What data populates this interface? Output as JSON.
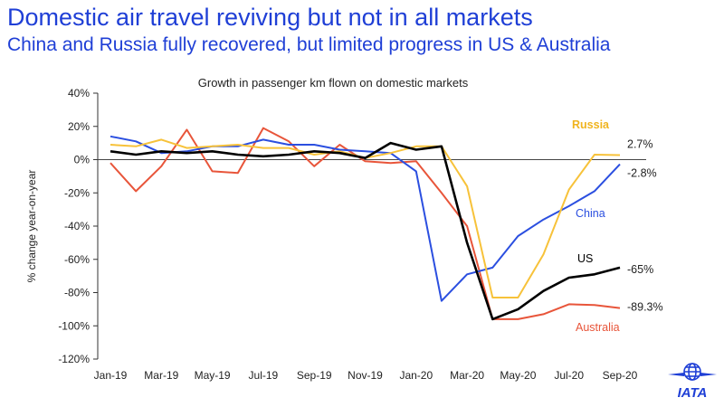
{
  "header": {
    "title": "Domestic air travel reviving but not in all markets",
    "subtitle": "China and Russia fully recovered, but limited progress in US & Australia"
  },
  "logo": {
    "text": "IATA",
    "icon": "globe-plane-icon",
    "color": "#1f3fd6"
  },
  "chart_data": {
    "type": "line",
    "title": "Growth in passenger km flown on domestic markets",
    "xlabel": "",
    "ylabel": "% change year-on-year",
    "ylim": [
      -120,
      40
    ],
    "yticks": [
      40,
      20,
      0,
      -20,
      -40,
      -60,
      -80,
      -100,
      -120
    ],
    "ytick_labels": [
      "40%",
      "20%",
      "0%",
      "-20%",
      "-40%",
      "-60%",
      "-80%",
      "-100%",
      "-120%"
    ],
    "x": [
      "Jan-19",
      "Feb-19",
      "Mar-19",
      "Apr-19",
      "May-19",
      "Jun-19",
      "Jul-19",
      "Aug-19",
      "Sep-19",
      "Oct-19",
      "Nov-19",
      "Dec-19",
      "Jan-20",
      "Feb-20",
      "Mar-20",
      "Apr-20",
      "May-20",
      "Jun-20",
      "Jul-20",
      "Aug-20",
      "Sep-20"
    ],
    "xtick_labels": [
      "Jan-19",
      "Mar-19",
      "May-19",
      "Jul-19",
      "Sep-19",
      "Nov-19",
      "Jan-20",
      "Mar-20",
      "May-20",
      "Jul-20",
      "Sep-20"
    ],
    "grid": false,
    "series": [
      {
        "name": "Australia",
        "color": "#e8553a",
        "values": [
          -2,
          -19,
          -4,
          18,
          -7,
          -8,
          19,
          11,
          -4,
          9,
          -1,
          -2,
          -1,
          -20,
          -40,
          -96,
          -96,
          -93,
          -87,
          -87.5,
          -89.3
        ],
        "end_label": "-89.3%"
      },
      {
        "name": "China",
        "color": "#2b4fe0",
        "values": [
          14,
          11,
          4,
          5,
          8,
          8,
          12,
          9,
          9,
          6,
          5,
          4,
          -7,
          -85,
          -69,
          -65,
          -46,
          -36,
          -28,
          -19,
          -2.8
        ],
        "end_label": "-2.8%"
      },
      {
        "name": "Russia",
        "color": "#f7c23a",
        "values": [
          9,
          8,
          12,
          7,
          8,
          9,
          7,
          7,
          3,
          5,
          1,
          4,
          8,
          8,
          -16,
          -83,
          -83,
          -57,
          -18,
          3,
          2.7
        ],
        "end_label": "2.7%"
      },
      {
        "name": "US",
        "color": "#000000",
        "values": [
          5,
          3,
          5,
          4,
          5,
          3,
          2,
          3,
          5,
          4,
          1,
          10,
          6,
          8,
          -50,
          -96,
          -90,
          -79,
          -71,
          -69,
          -65
        ],
        "end_label": "-65%"
      }
    ]
  }
}
